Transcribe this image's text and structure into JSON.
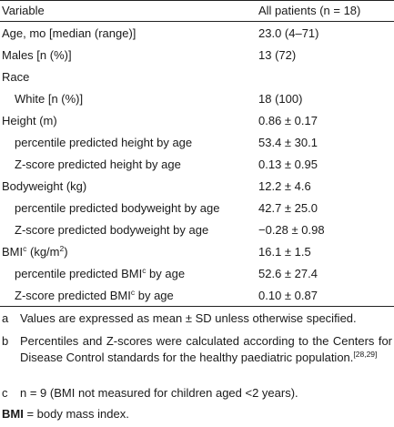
{
  "table": {
    "header": {
      "variable": "Variable",
      "all_patients": "All patients (n = 18)"
    },
    "rows": [
      {
        "label": "Age, mo [median (range)]",
        "value": "23.0 (4–71)"
      },
      {
        "label": "Males [n (%)]",
        "value": "13 (72)"
      },
      {
        "label": "Race",
        "value": ""
      },
      {
        "label": "White [n (%)]",
        "value": "18 (100)"
      },
      {
        "label": "Height (m)",
        "value": "0.86 ± 0.17"
      },
      {
        "label": "percentile predicted height by age",
        "value": "53.4 ± 30.1"
      },
      {
        "label": "Z-score predicted height by age",
        "value": "0.13 ± 0.95"
      },
      {
        "label": "Bodyweight (kg)",
        "value": "12.2 ± 4.6"
      },
      {
        "label": "percentile predicted bodyweight by age",
        "value": "42.7 ± 25.0"
      },
      {
        "label": "Z-score predicted bodyweight by age",
        "value": "−0.28 ± 0.98"
      },
      {
        "label_pre": "BMI",
        "label_sup": "c",
        "label_post": " (kg/m",
        "label_sup2": "2",
        "label_end": ")",
        "value": "16.1 ± 1.5"
      },
      {
        "label_pre": "percentile predicted BMI",
        "label_sup": "c",
        "label_post": " by age",
        "value": "52.6 ± 27.4"
      },
      {
        "label_pre": "Z-score predicted BMI",
        "label_sup": "c",
        "label_post": " by age",
        "value": "0.10 ± 0.87"
      }
    ]
  },
  "footnotes": [
    {
      "marker": "a",
      "text": "Values are expressed as mean ± SD unless otherwise specified."
    },
    {
      "marker": "b",
      "text": "Percentiles and Z-scores were calculated according to the Centers for Disease Control standards for the healthy paediatric population.",
      "ref": "[28,29]"
    },
    {
      "marker": "c",
      "text": "n = 9 (BMI not measured for children aged <2 years)."
    }
  ],
  "abbreviation": {
    "term": "BMI",
    "definition": " = body mass index."
  }
}
